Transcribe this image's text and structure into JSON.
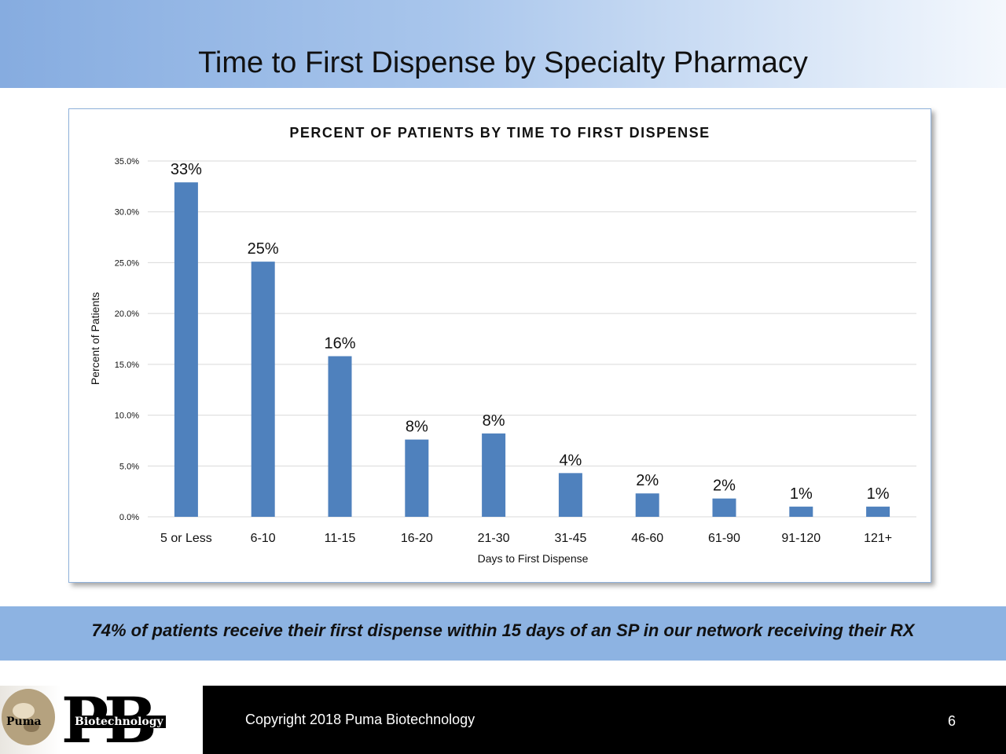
{
  "slide": {
    "title": "Time to First Dispense by Specialty Pharmacy",
    "callout": "74% of patients receive their first dispense within 15 days of an SP in our network receiving their RX",
    "copyright": "Copyright 2018 Puma Biotechnology",
    "page_number": "6",
    "logo": {
      "letters": "PB",
      "word_left": "Puma",
      "word_right": "Biotechnology"
    }
  },
  "colors": {
    "bar": "#4f81bd",
    "header_gradient_start": "#86ace0",
    "callout_band": "#8db3e2",
    "footer": "#000000",
    "gridline": "#d9d9d9"
  },
  "chart_data": {
    "type": "bar",
    "title": "PERCENT OF PATIENTS BY TIME TO FIRST DISPENSE",
    "xlabel": "Days to First Dispense",
    "ylabel": "Percent of Patients",
    "categories": [
      "5 or Less",
      "6-10",
      "11-15",
      "16-20",
      "21-30",
      "31-45",
      "46-60",
      "61-90",
      "91-120",
      "121+"
    ],
    "values": [
      32.9,
      25.1,
      15.8,
      7.6,
      8.2,
      4.3,
      2.3,
      1.8,
      1.0,
      1.0
    ],
    "data_labels": [
      "33%",
      "25%",
      "16%",
      "8%",
      "8%",
      "4%",
      "2%",
      "2%",
      "1%",
      "1%"
    ],
    "yticks": [
      "0.0%",
      "5.0%",
      "10.0%",
      "15.0%",
      "20.0%",
      "25.0%",
      "30.0%",
      "35.0%"
    ],
    "ylim": [
      0,
      35
    ],
    "grid": true,
    "legend": "none"
  }
}
